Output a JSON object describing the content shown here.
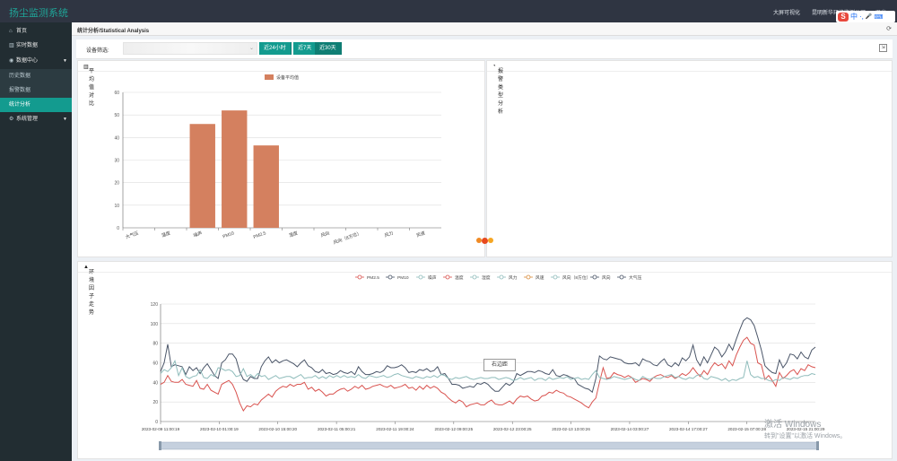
{
  "app": {
    "title": "扬尘监测系统"
  },
  "topnav": {
    "item1": "大屏可视化",
    "item2": "昆明新华环境监测公司",
    "item3": "退出"
  },
  "ime": {
    "brand": "S",
    "lang": "中",
    "punct": "·,",
    "mic": "🎤",
    "kbd": "⌨"
  },
  "sidebar": {
    "home": "首页",
    "realtime": "实时数据",
    "datacenter": "数据中心",
    "history": "历史数据",
    "alarm": "报警数据",
    "stats": "统计分析",
    "system": "系统管理"
  },
  "page": {
    "title": "统计分析/Statistical Analysis"
  },
  "filter": {
    "label": "设备筛选:",
    "btn_24h": "近24小时",
    "btn_7d": "近7天",
    "btn_30d": "近30天"
  },
  "panels": {
    "bar_title": "平均值对比",
    "alarm_title": "报警类型分析",
    "trend_title": "环境因子走势"
  },
  "tooltip": {
    "label": "右边距"
  },
  "watermark": {
    "line1": "激活 Windows",
    "line2": "转到\"设置\"以激活 Windows。"
  },
  "colors": {
    "primary": "#139b8f",
    "bar": "#d4805f",
    "pm25": "#d9534f",
    "pm10": "#4a5568",
    "noise": "#8fbcbb"
  },
  "chart_data": [
    {
      "type": "bar",
      "legend": [
        "设备平均值"
      ],
      "categories": [
        "大气压",
        "温度",
        "噪声",
        "PM10",
        "PM2.5",
        "湿度",
        "风向",
        "风向（8方位）",
        "风力",
        "风速"
      ],
      "values": [
        0,
        0,
        46,
        52,
        36.5,
        0,
        0,
        0,
        0,
        0
      ],
      "ylim": [
        0,
        60
      ],
      "yticks": [
        0,
        10,
        20,
        30,
        40,
        50,
        60
      ]
    },
    {
      "type": "line",
      "legend": [
        "PM2.5",
        "PM10",
        "噪声",
        "温度",
        "湿度",
        "风力",
        "风速",
        "风向（8方位）",
        "风向",
        "大气压"
      ],
      "ylim": [
        0,
        120
      ],
      "yticks": [
        0,
        20,
        40,
        60,
        80,
        100,
        120
      ],
      "x_labels": [
        "2023-02-09 11:00:19",
        "2023-02-10 01:00:19",
        "2023-02-10 15:00:20",
        "2023-02-11 05:00:21",
        "2023-02-11 19:00:24",
        "2023-02-12 09:00:25",
        "2023-02-12 23:00:25",
        "2023-02-13 13:00:26",
        "2023-02-14 03:00:27",
        "2023-02-14 17:00:27",
        "2023-02-15 07:00:28",
        "2023-02-15 21:00:29"
      ],
      "series": [
        {
          "name": "PM2.5",
          "color": "#d9534f",
          "values": [
            38,
            40,
            47,
            41,
            40,
            40,
            43,
            38,
            37,
            36,
            42,
            34,
            33,
            38,
            32,
            30,
            28,
            38,
            40,
            42,
            38,
            30,
            19,
            11,
            16,
            15,
            18,
            17,
            22,
            25,
            28,
            25,
            31,
            34,
            36,
            35,
            38,
            36,
            38,
            38,
            40,
            33,
            35,
            31,
            33,
            30,
            26,
            28,
            28,
            31,
            33,
            34,
            31,
            33,
            36,
            34,
            37,
            33,
            34,
            36,
            37,
            38,
            36,
            35,
            37,
            34,
            35,
            36,
            38,
            34,
            35,
            32,
            36,
            33,
            37,
            34,
            36,
            34,
            30,
            28,
            24,
            21,
            19,
            22,
            20,
            15,
            17,
            18,
            19,
            17,
            17,
            20,
            22,
            18,
            17,
            17,
            19,
            21,
            18,
            23,
            26,
            25,
            26,
            23,
            21,
            22,
            26,
            27,
            30,
            29,
            32,
            30,
            29,
            26,
            25,
            23,
            21,
            19,
            16,
            14,
            20,
            24,
            40,
            55,
            44,
            45,
            50,
            48,
            47,
            45,
            47,
            45,
            40,
            42,
            44,
            43,
            41,
            45,
            47,
            48,
            46,
            45,
            47,
            44,
            46,
            49,
            47,
            50,
            55,
            50,
            46,
            52,
            48,
            55,
            60,
            57,
            59,
            54,
            62,
            57,
            68,
            76,
            83,
            86,
            80,
            78,
            60,
            58,
            43,
            47,
            42,
            36,
            50,
            44,
            47,
            51,
            53,
            48,
            54,
            52,
            58,
            56,
            55
          ]
        },
        {
          "name": "PM10",
          "color": "#4a5568",
          "values": [
            51,
            60,
            79,
            56,
            58,
            57,
            56,
            48,
            56,
            52,
            55,
            49,
            55,
            59,
            53,
            47,
            44,
            60,
            63,
            69,
            69,
            64,
            51,
            43,
            41,
            46,
            44,
            44,
            56,
            62,
            66,
            60,
            63,
            60,
            62,
            63,
            61,
            59,
            56,
            60,
            63,
            57,
            55,
            51,
            50,
            53,
            49,
            50,
            48,
            49,
            52,
            50,
            49,
            51,
            48,
            56,
            51,
            48,
            48,
            49,
            51,
            50,
            52,
            57,
            55,
            55,
            56,
            58,
            55,
            50,
            51,
            50,
            53,
            52,
            54,
            51,
            52,
            56,
            48,
            49,
            44,
            38,
            38,
            37,
            34,
            35,
            36,
            35,
            39,
            38,
            40,
            38,
            34,
            31,
            31,
            35,
            39,
            37,
            40,
            49,
            47,
            49,
            51,
            51,
            50,
            52,
            51,
            49,
            48,
            53,
            47,
            46,
            48,
            47,
            45,
            44,
            38,
            36,
            34,
            33,
            30,
            44,
            67,
            64,
            63,
            66,
            65,
            64,
            63,
            60,
            59,
            59,
            60,
            57,
            64,
            62,
            61,
            58,
            57,
            61,
            64,
            58,
            56,
            60,
            57,
            65,
            62,
            66,
            78,
            63,
            57,
            66,
            60,
            68,
            76,
            73,
            66,
            71,
            79,
            73,
            84,
            94,
            103,
            106,
            104,
            98,
            86,
            73,
            57,
            53,
            50,
            49,
            63,
            55,
            60,
            69,
            68,
            64,
            71,
            66,
            64,
            73,
            76
          ]
        },
        {
          "name": "噪声",
          "color": "#8fbcbb",
          "values": [
            49,
            53,
            51,
            55,
            62,
            47,
            55,
            46,
            44,
            46,
            47,
            53,
            45,
            44,
            48,
            46,
            55,
            54,
            52,
            53,
            51,
            46,
            47,
            54,
            46,
            48,
            45,
            49,
            46,
            47,
            43,
            45,
            47,
            44,
            45,
            46,
            46,
            44,
            46,
            48,
            44,
            45,
            45,
            47,
            44,
            46,
            44,
            47,
            45,
            47,
            45,
            47,
            45,
            46,
            45,
            48,
            45,
            44,
            47,
            46,
            45,
            46,
            47,
            45,
            46,
            48,
            49,
            47,
            46,
            45,
            44,
            46,
            45,
            44,
            46,
            45,
            47,
            45,
            48,
            47,
            44,
            43,
            45,
            44,
            45,
            46,
            44,
            43,
            44,
            45,
            44,
            44,
            45,
            45,
            43,
            44,
            45,
            44,
            42,
            43,
            45,
            43,
            44,
            45,
            42,
            44,
            44,
            42,
            45,
            43,
            44,
            45,
            44,
            46,
            43,
            44,
            45,
            43,
            44,
            43,
            48,
            52,
            45,
            44,
            43,
            44,
            46,
            45,
            44,
            43,
            44,
            45,
            43,
            42,
            46,
            44,
            43,
            45,
            44,
            44,
            46,
            47,
            48,
            45,
            46,
            44,
            43,
            45,
            44,
            47,
            48,
            44,
            43,
            46,
            45,
            44,
            42,
            44,
            41,
            43,
            42,
            44,
            45,
            62,
            48,
            45,
            46,
            44,
            44,
            42,
            41,
            43,
            42,
            45,
            44,
            43,
            45,
            44,
            46,
            47,
            47,
            49,
            48
          ]
        }
      ]
    }
  ]
}
